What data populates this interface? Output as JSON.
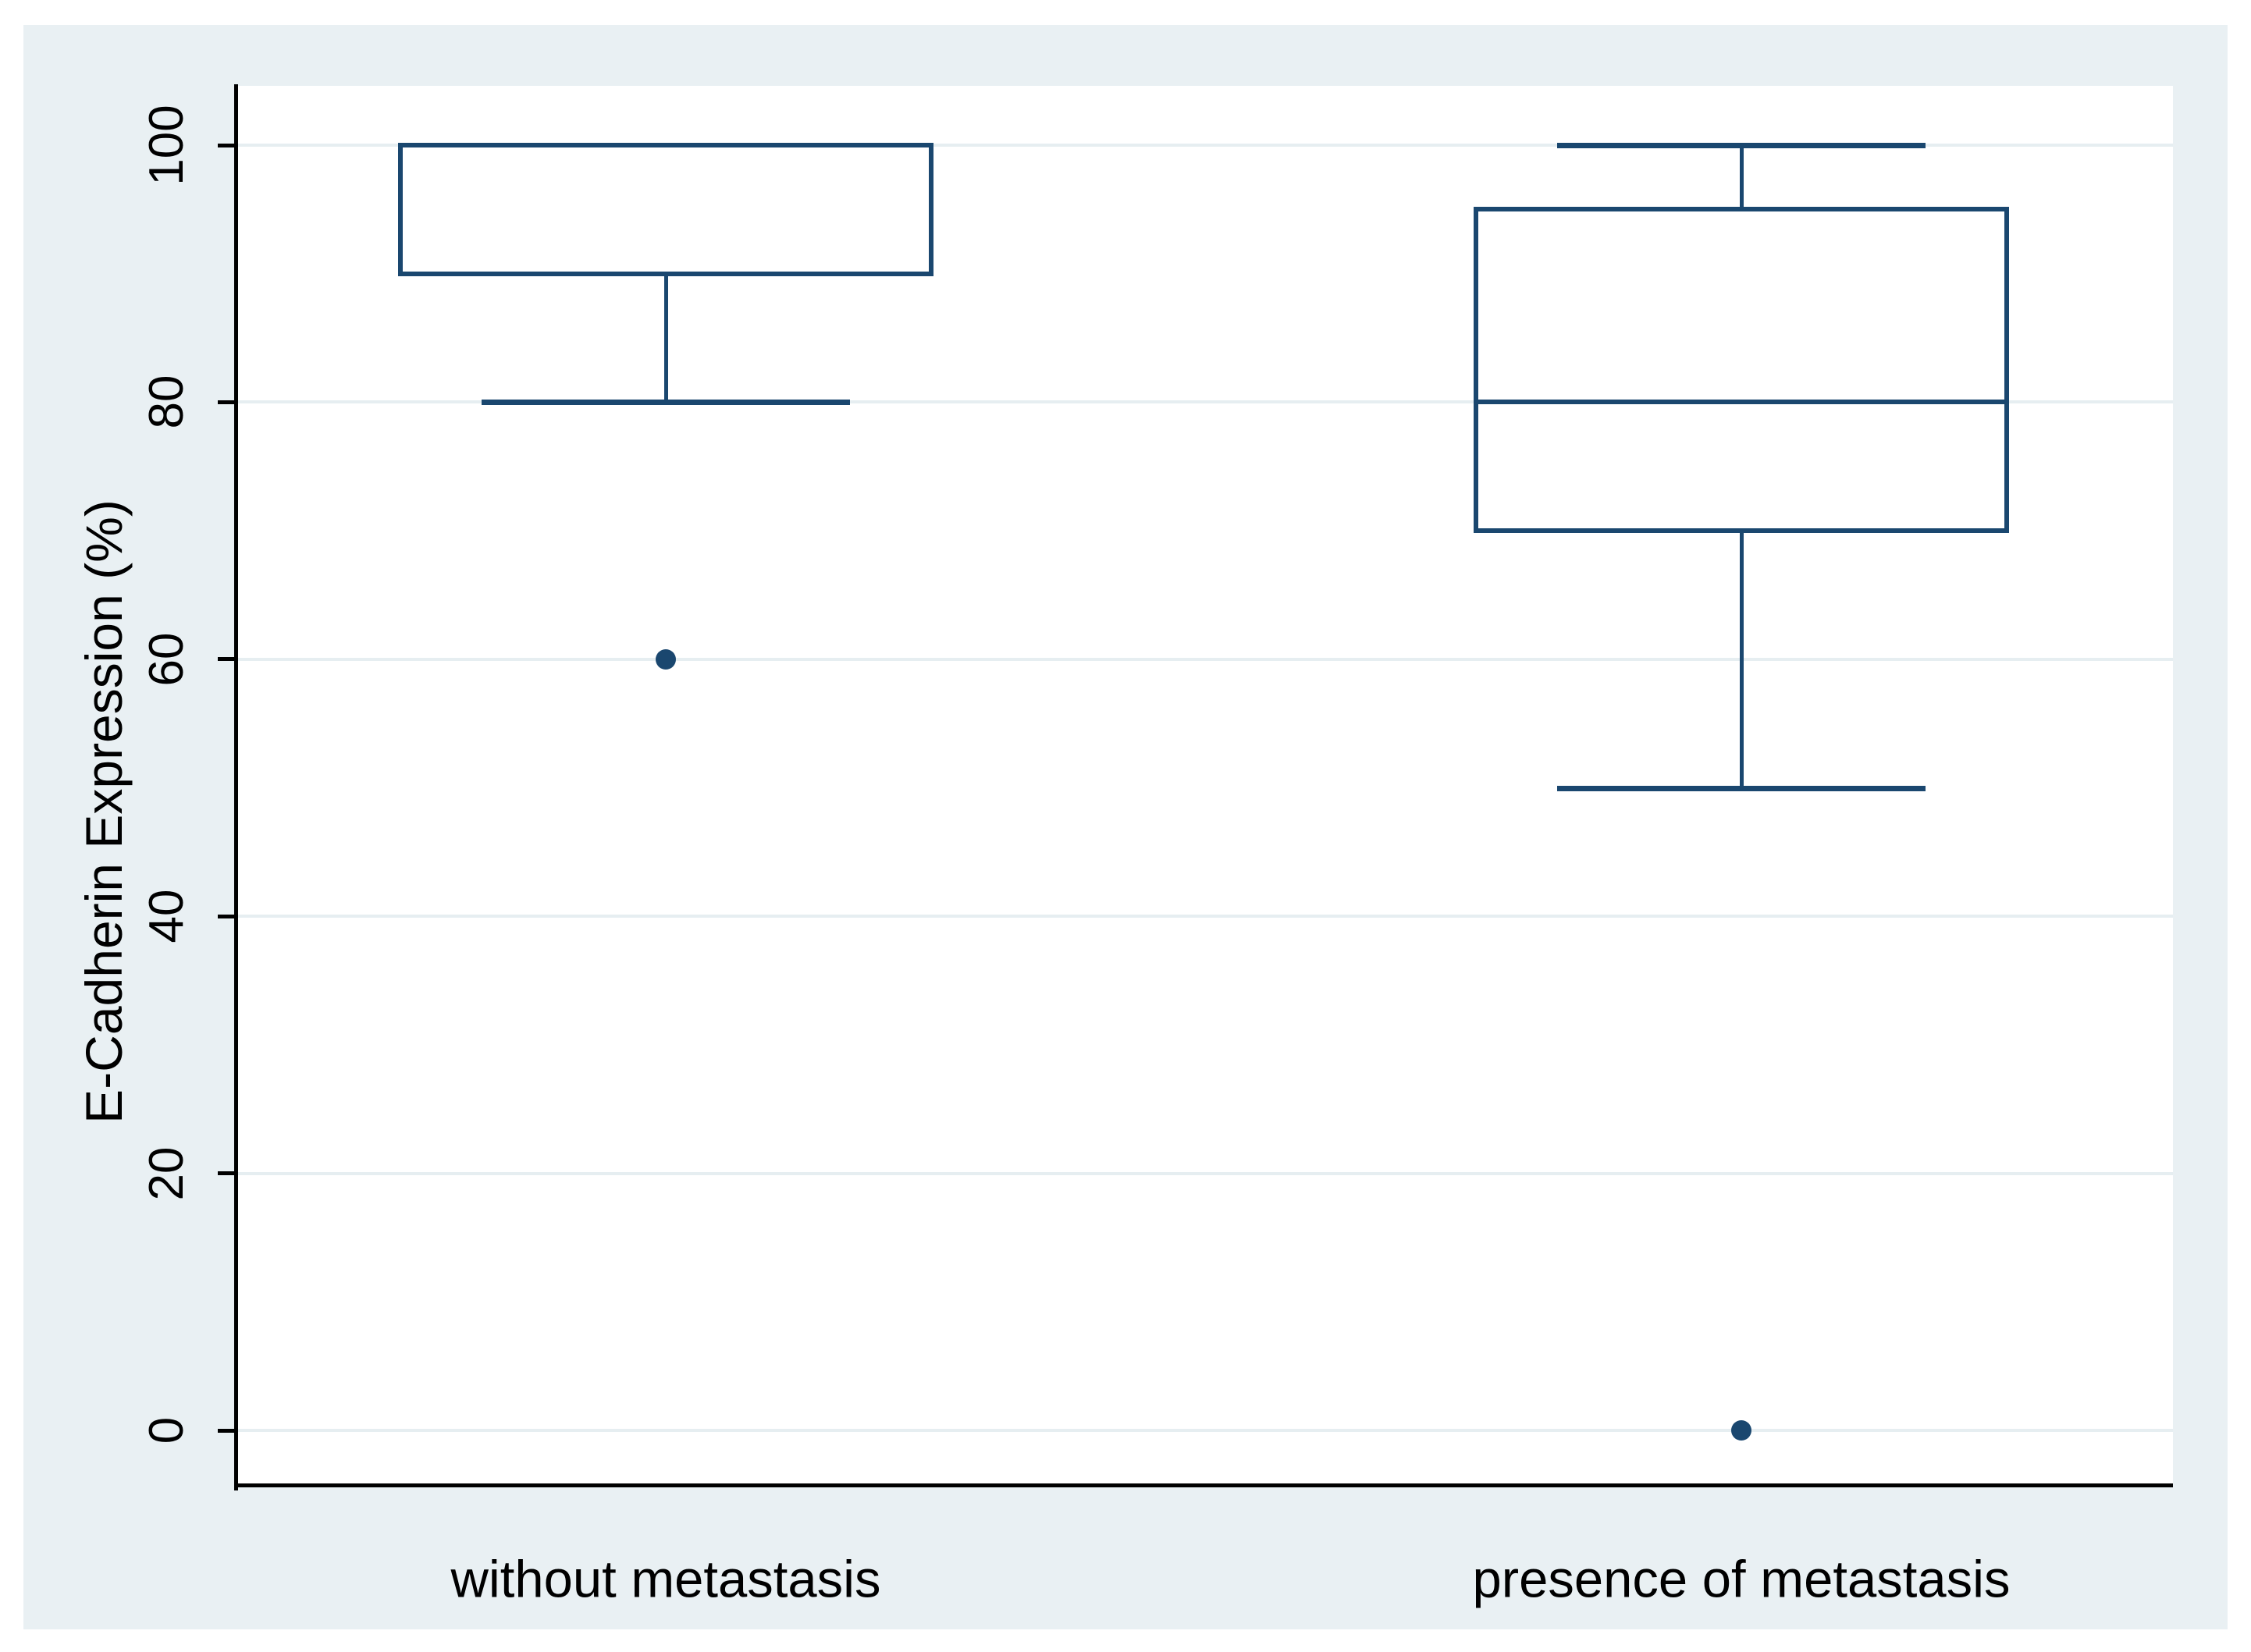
{
  "chart_data": {
    "type": "box",
    "title": "",
    "ylabel": "E-Cadherin Expression (%)",
    "xlabel": "",
    "ylim": [
      0,
      100
    ],
    "yticks": [
      0,
      20,
      40,
      60,
      80,
      100
    ],
    "grid": true,
    "legend": "none",
    "categories": [
      "without metastasis",
      "presence of metastasis"
    ],
    "groups": [
      {
        "label": "without metastasis",
        "q1": 90,
        "median": 90,
        "q3": 100,
        "whisker_low": 80,
        "whisker_high": 100,
        "outliers": [
          60
        ]
      },
      {
        "label": "presence of metastasis",
        "q1": 70,
        "median": 80,
        "q3": 95,
        "whisker_low": 50,
        "whisker_high": 100,
        "outliers": [
          0
        ]
      }
    ],
    "colors": {
      "box_stroke": "#1a476f",
      "outlier": "#1a476f",
      "axis": "#000000",
      "gridline": "#e6eef1",
      "plot_background": "#ffffff",
      "canvas_background": "#e9f0f3",
      "page_background": "#ffffff",
      "text": "#000000"
    }
  }
}
